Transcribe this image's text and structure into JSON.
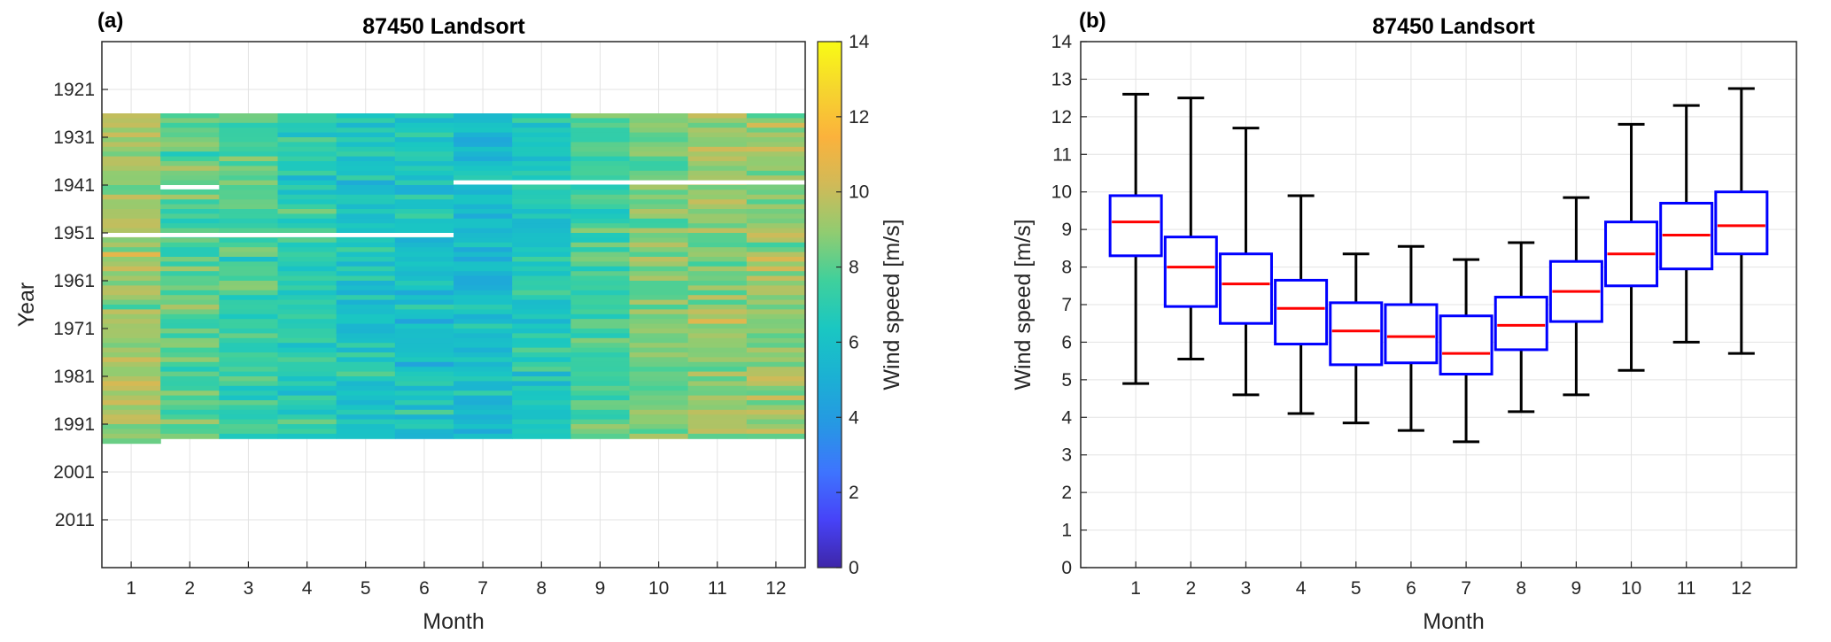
{
  "chart_data": [
    {
      "type": "heatmap",
      "panel_label": "(a)",
      "title": "87450 Landsort",
      "xlabel": "Month",
      "ylabel": "Year",
      "colorbar_label": "Wind speed [m/s]",
      "x_categories": [
        "1",
        "2",
        "3",
        "4",
        "5",
        "6",
        "7",
        "8",
        "9",
        "10",
        "11",
        "12"
      ],
      "y_ticks": [
        "1921",
        "1931",
        "1941",
        "1951",
        "1961",
        "1971",
        "1981",
        "1991",
        "2001",
        "2011"
      ],
      "y_range": [
        1911,
        2021
      ],
      "clim": [
        0,
        14
      ],
      "colorbar_ticks": [
        "0",
        "2",
        "4",
        "6",
        "8",
        "10",
        "12",
        "14"
      ],
      "colormap": [
        "#3e26a8",
        "#4743f8",
        "#3e74fe",
        "#2698e3",
        "#1bb1d3",
        "#1ac7c2",
        "#3fd09c",
        "#90cc71",
        "#d0ba58",
        "#fbb23c",
        "#f6d52e",
        "#f9fb15"
      ],
      "monthly_mean_wind_speed": [
        9.2,
        8.0,
        7.6,
        6.9,
        6.3,
        6.1,
        5.7,
        6.5,
        7.4,
        8.4,
        8.9,
        9.1
      ],
      "monthly_record_years": [
        [
          1926,
          1994
        ],
        [
          1926,
          1993
        ],
        [
          1926,
          1993
        ],
        [
          1926,
          1993
        ],
        [
          1926,
          1993
        ],
        [
          1926,
          1993
        ],
        [
          1926,
          1993
        ],
        [
          1926,
          1993
        ],
        [
          1926,
          1993
        ],
        [
          1926,
          1993
        ],
        [
          1926,
          1993
        ],
        [
          1926,
          1993
        ]
      ],
      "missing_years": [
        {
          "months": [
            1,
            6
          ],
          "year": 1951
        },
        {
          "months": [
            7,
            12
          ],
          "year": 1940
        },
        {
          "months": [
            2,
            2
          ],
          "year": 1941
        }
      ]
    },
    {
      "type": "box",
      "panel_label": "(b)",
      "title": "87450 Landsort",
      "xlabel": "Month",
      "ylabel": "Wind speed [m/s]",
      "categories": [
        "1",
        "2",
        "3",
        "4",
        "5",
        "6",
        "7",
        "8",
        "9",
        "10",
        "11",
        "12"
      ],
      "xlim": [
        0,
        13
      ],
      "ylim": [
        0,
        14
      ],
      "y_ticks": [
        "0",
        "1",
        "2",
        "3",
        "4",
        "5",
        "6",
        "7",
        "8",
        "9",
        "10",
        "11",
        "12",
        "13",
        "14"
      ],
      "grid": true,
      "box_color": "#0000ff",
      "median_color": "#ff0000",
      "whisker_color": "#000000",
      "boxes": [
        {
          "min": 4.9,
          "q1": 8.3,
          "median": 9.2,
          "q3": 9.9,
          "max": 12.6
        },
        {
          "min": 5.55,
          "q1": 6.95,
          "median": 8.0,
          "q3": 8.8,
          "max": 12.5
        },
        {
          "min": 4.6,
          "q1": 6.5,
          "median": 7.55,
          "q3": 8.35,
          "max": 11.7
        },
        {
          "min": 4.1,
          "q1": 5.95,
          "median": 6.9,
          "q3": 7.65,
          "max": 9.9
        },
        {
          "min": 3.85,
          "q1": 5.4,
          "median": 6.3,
          "q3": 7.05,
          "max": 8.35
        },
        {
          "min": 3.65,
          "q1": 5.45,
          "median": 6.15,
          "q3": 7.0,
          "max": 8.55
        },
        {
          "min": 3.35,
          "q1": 5.15,
          "median": 5.7,
          "q3": 6.7,
          "max": 8.2
        },
        {
          "min": 4.15,
          "q1": 5.8,
          "median": 6.45,
          "q3": 7.2,
          "max": 8.65
        },
        {
          "min": 4.6,
          "q1": 6.55,
          "median": 7.35,
          "q3": 8.15,
          "max": 9.85
        },
        {
          "min": 5.25,
          "q1": 7.5,
          "median": 8.35,
          "q3": 9.2,
          "max": 11.8
        },
        {
          "min": 6.0,
          "q1": 7.95,
          "median": 8.85,
          "q3": 9.7,
          "max": 12.3
        },
        {
          "min": 5.7,
          "q1": 8.35,
          "median": 9.1,
          "q3": 10.0,
          "max": 12.75
        }
      ]
    }
  ]
}
